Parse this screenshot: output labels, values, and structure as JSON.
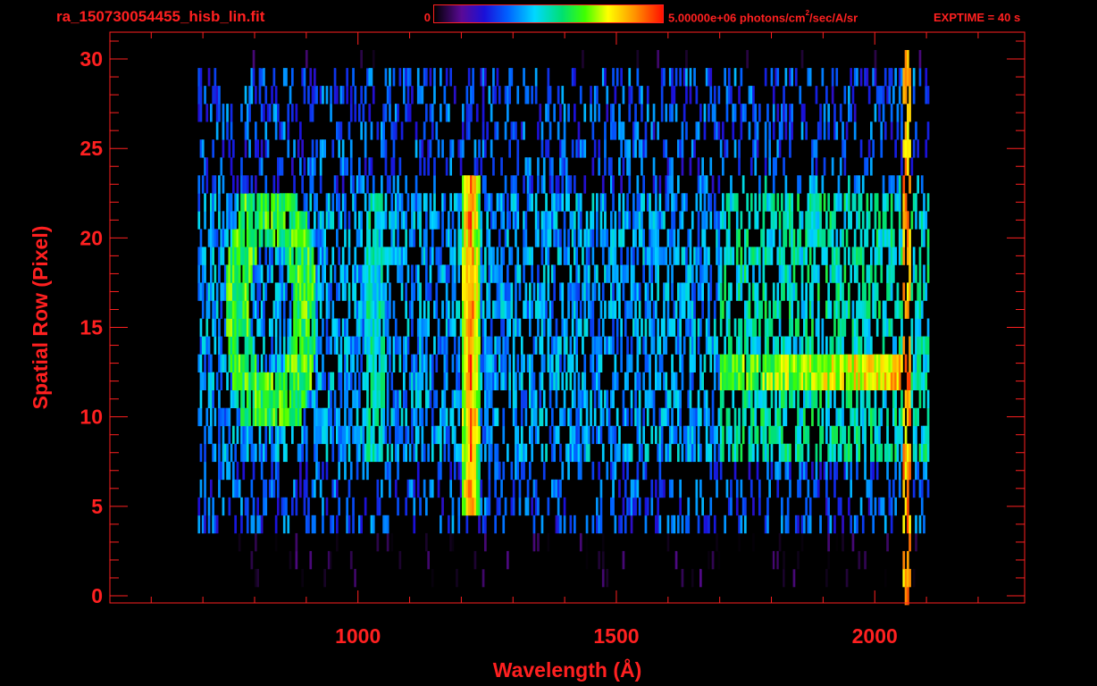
{
  "header": {
    "file_title": "ra_150730054455_hisb_lin.fit",
    "colorbar_min": "0",
    "colorbar_max_prefix": "5.00000e+06 photons/cm",
    "colorbar_max_sup": "2",
    "colorbar_max_suffix": "/sec/A/sr",
    "exptime": "EXPTIME = 40 s"
  },
  "colors": {
    "axis": "#ff2020",
    "background": "#000000"
  },
  "chart_data": {
    "type": "heatmap",
    "title": "ra_150730054455_hisb_lin.fit",
    "xlabel": "Wavelength (Å)",
    "ylabel": "Spatial Row (Pixel)",
    "xlim": [
      520,
      2290
    ],
    "ylim": [
      -0.4,
      31.5
    ],
    "x_ticks": [
      1000,
      1500,
      2000
    ],
    "y_ticks": [
      0,
      5,
      10,
      15,
      20,
      25,
      30
    ],
    "grid": false,
    "colorbar": {
      "min": 0,
      "max": 5000000,
      "units": "photons/cm^2/sec/A/sr",
      "colormap": "rainbow (black-purple-blue-cyan-green-yellow-red)"
    },
    "data_extent": {
      "x": [
        690,
        2105
      ],
      "rows": [
        0,
        30
      ]
    },
    "features": [
      {
        "name": "bright emission line",
        "x": 1216,
        "rows": [
          5,
          23
        ],
        "level": 0.95
      },
      {
        "name": "curved arc feature",
        "x": [
          770,
          900
        ],
        "rows": [
          10,
          22
        ],
        "level": 0.65
      },
      {
        "name": "horizontal streak",
        "x": [
          1700,
          2060
        ],
        "rows": [
          12,
          13
        ],
        "level": 0.82
      },
      {
        "name": "main band",
        "x": [
          700,
          2060
        ],
        "rows": [
          8,
          22
        ],
        "level": 0.4
      },
      {
        "name": "right edge line",
        "x": 2060,
        "rows": [
          1,
          30
        ],
        "level": 0.9
      }
    ]
  }
}
